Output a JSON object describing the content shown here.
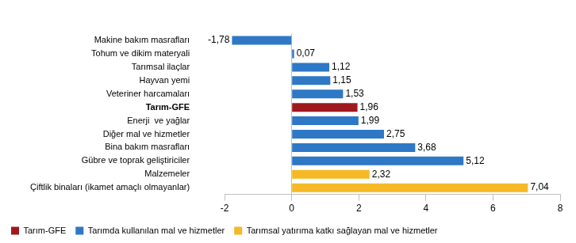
{
  "chart_data": {
    "type": "bar",
    "orientation": "horizontal",
    "categories": [
      "Makine bakım masrafları",
      "Tohum ve dikim materyali",
      "Tarımsal ilaçlar",
      "Hayvan yemi",
      "Veteriner harcamaları",
      "Tarım-GFE",
      "Enerji  ve yağlar",
      "Diğer mal ve hizmetler",
      "Bina bakım masrafları",
      "Gübre ve toprak geliştiriciler",
      "Malzemeler",
      "Çiftlik binaları (ikamet amaçlı olmayanlar)"
    ],
    "series": [
      {
        "name": "Tarım-GFE",
        "color": "#a0191e",
        "values": [
          null,
          null,
          null,
          null,
          null,
          1.96,
          null,
          null,
          null,
          null,
          null,
          null
        ],
        "value_labels": [
          null,
          null,
          null,
          null,
          null,
          "1,96",
          null,
          null,
          null,
          null,
          null,
          null
        ]
      },
      {
        "name": "Tarımda kullanılan mal ve hizmetler",
        "color": "#2e78c6",
        "values": [
          -1.78,
          0.07,
          1.12,
          1.15,
          1.53,
          null,
          1.99,
          2.75,
          3.68,
          5.12,
          null,
          null
        ],
        "value_labels": [
          "-1,78",
          "0,07",
          "1,12",
          "1,15",
          "1,53",
          null,
          "1,99",
          "2,75",
          "3,68",
          "5,12",
          null,
          null
        ]
      },
      {
        "name": "Tarımsal yatırıma katkı sağlayan mal ve hizmetler",
        "color": "#f5b925",
        "values": [
          null,
          null,
          null,
          null,
          null,
          null,
          null,
          null,
          null,
          null,
          2.32,
          7.04
        ],
        "value_labels": [
          null,
          null,
          null,
          null,
          null,
          null,
          null,
          null,
          null,
          null,
          "2,32",
          "7,04"
        ]
      }
    ],
    "xlim": [
      -2,
      8
    ],
    "xticks": [
      -2,
      0,
      2,
      4,
      6,
      8
    ],
    "grid": false,
    "data_labels": true,
    "legend": "bottom"
  }
}
